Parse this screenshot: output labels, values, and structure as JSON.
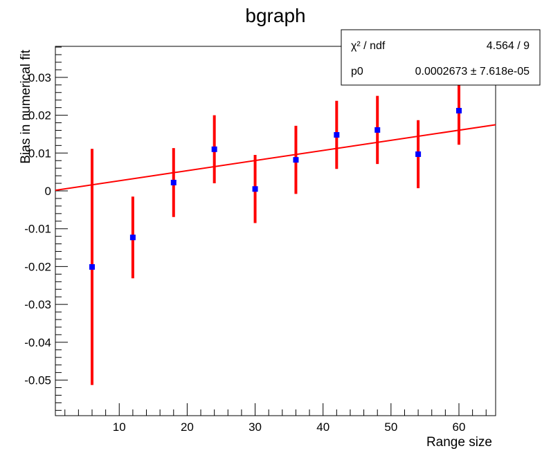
{
  "chart_data": {
    "type": "scatter",
    "title": "bgraph",
    "xlabel": "Range size",
    "ylabel": "Bias in numerical fit",
    "xlim": [
      0.6,
      65.4
    ],
    "ylim": [
      -0.0594,
      0.0382
    ],
    "xticks": [
      10,
      20,
      30,
      40,
      50,
      60
    ],
    "yticks": [
      -0.05,
      -0.04,
      -0.03,
      -0.02,
      -0.01,
      0,
      0.01,
      0.02,
      0.03
    ],
    "xtick_labels": [
      "10",
      "20",
      "30",
      "40",
      "50",
      "60"
    ],
    "ytick_labels": [
      "-0.05",
      "-0.04",
      "-0.03",
      "-0.02",
      "-0.01",
      "0",
      "0.01",
      "0.02",
      "0.03"
    ],
    "grid": false,
    "series": [
      {
        "name": "bgraph",
        "marker_color": "#0000ff",
        "error_color": "#ff0000",
        "x": [
          6,
          12,
          18,
          24,
          30,
          36,
          42,
          48,
          54,
          60
        ],
        "y": [
          -0.0201,
          -0.0123,
          0.0022,
          0.011,
          0.0005,
          0.0082,
          0.0148,
          0.0161,
          0.0097,
          0.0212
        ],
        "yerr": [
          0.0312,
          0.0108,
          0.0091,
          0.009,
          0.009,
          0.009,
          0.009,
          0.009,
          0.009,
          0.009
        ]
      }
    ],
    "fit": {
      "formula": "p0*x",
      "p0": 0.0002673,
      "color": "#ff0000"
    },
    "stats_box": {
      "position": "top-right",
      "rows": [
        {
          "label": "χ² / ndf",
          "value": "4.564 / 9"
        },
        {
          "label": "p0",
          "value": "0.0002673 ± 7.618e-05"
        }
      ]
    }
  }
}
